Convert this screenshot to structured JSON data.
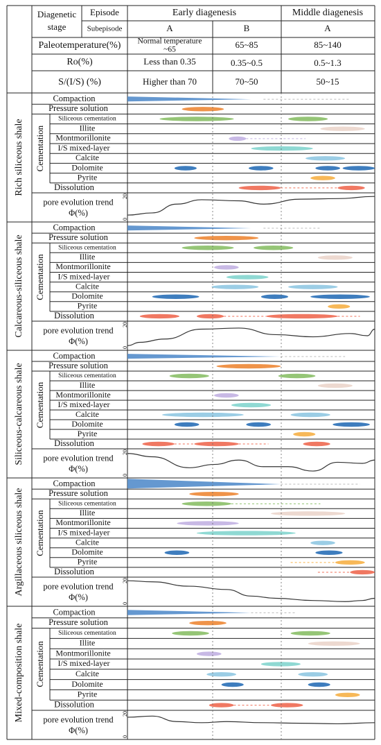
{
  "header": {
    "diagenetic_stage": [
      "Diagenetic",
      "stage"
    ],
    "episode": "Episode",
    "subepisode": "Subepisode",
    "early_diagenesis": "Early diagenesis",
    "middle_diagenesis": "Middle diagenesis",
    "sub_a": "A",
    "sub_b": "B",
    "sub_c": "A",
    "paleotemperature_label": "Paleotemperature(%)",
    "paleo_a": [
      "Normal temperature",
      "~65"
    ],
    "paleo_b": "65~85",
    "paleo_c": "85~140",
    "ro_label": "Ro(%)",
    "ro_a": "Less than 0.35",
    "ro_b": "0.35~0.5",
    "ro_c": "0.5~1.3",
    "sis_label": "S/(I/S) (%)",
    "sis_a": "Higher than 70",
    "sis_b": "70~50",
    "sis_c": "50~15"
  },
  "labels": {
    "compaction": "Compaction",
    "pressure_solution": "Pressure solution",
    "cementation": "Cementation",
    "siliceous_cementation": "Siliceous cementation",
    "illite": "Illite",
    "montmorillonite": "Montmorillonite",
    "is_mixed_layer": "I/S mixed-layer",
    "calcite": "Calcite",
    "dolomite": "Dolomite",
    "pyrite": "Pyrite",
    "dissolution": "Dissolution",
    "pore_trend_1": "pore evolution trend",
    "pore_trend_2": "Φ(%)",
    "axis_top": "20",
    "axis_bottom": "0"
  },
  "colors": {
    "compaction": "#4a86c8",
    "pressure": "#ee8a3a",
    "siliceous": "#8cc06a",
    "illite": "#ecd6cc",
    "montmorillonite": "#c3b3e3",
    "ismixed": "#86d6cf",
    "calcite": "#93c9e3",
    "dolomite": "#2e72b8",
    "pyrite": "#f6b24a",
    "dissolution": "#ef6d55"
  },
  "sections": [
    {
      "name": "Rich siliceous shale",
      "compaction_end": 0.5,
      "bars": {
        "pressure": [
          [
            0.22,
            0.39
          ]
        ],
        "siliceous": [
          [
            0.13,
            0.43
          ],
          [
            0.65,
            0.81
          ]
        ],
        "illite": [
          [
            0.78,
            0.96
          ]
        ],
        "montmorillonite": [
          [
            0.41,
            0.48
          ]
        ],
        "ismixed": [
          [
            0.5,
            0.75
          ]
        ],
        "calcite": [
          [
            0.72,
            0.88
          ]
        ],
        "dolomite": [
          [
            0.19,
            0.28
          ],
          [
            0.49,
            0.59
          ],
          [
            0.76,
            0.86
          ],
          [
            0.87,
            1.0
          ]
        ],
        "pyrite": [
          [
            0.74,
            0.84
          ]
        ],
        "dissolution": [
          [
            0.45,
            0.62
          ],
          [
            0.85,
            0.96
          ]
        ]
      },
      "dashes": {
        "compaction": [
          [
            0.55,
            0.9
          ]
        ],
        "montmorillonite": [
          [
            0.48,
            0.72
          ]
        ],
        "dissolution": [
          [
            0.62,
            0.85
          ]
        ]
      },
      "curve": [
        [
          0,
          1.9
        ],
        [
          0.1,
          1.7
        ],
        [
          0.2,
          0.9
        ],
        [
          0.3,
          0.5
        ],
        [
          0.45,
          0.6
        ],
        [
          0.55,
          0.9
        ],
        [
          0.7,
          0.45
        ],
        [
          0.85,
          0.4
        ],
        [
          1,
          0.2
        ]
      ]
    },
    {
      "name": "Calcareous-siliceous shale",
      "compaction_end": 0.5,
      "bars": {
        "pressure": [
          [
            0.27,
            0.53
          ]
        ],
        "siliceous": [
          [
            0.22,
            0.43
          ],
          [
            0.51,
            0.67
          ]
        ],
        "illite": [
          [
            0.77,
            0.91
          ]
        ],
        "montmorillonite": [
          [
            0.35,
            0.45
          ]
        ],
        "ismixed": [
          [
            0.4,
            0.57
          ]
        ],
        "calcite": [
          [
            0.34,
            0.53
          ],
          [
            0.65,
            0.85
          ]
        ],
        "dolomite": [
          [
            0.1,
            0.29
          ],
          [
            0.54,
            0.65
          ],
          [
            0.74,
            0.98
          ]
        ],
        "pyrite": [
          [
            0.81,
            0.9
          ]
        ],
        "dissolution": [
          [
            0.05,
            0.21
          ],
          [
            0.28,
            0.39
          ],
          [
            0.56,
            0.85
          ]
        ]
      },
      "dashes": {
        "compaction": [
          [
            0.55,
            0.78
          ]
        ],
        "dissolution": [
          [
            0.39,
            0.56
          ],
          [
            0.85,
            0.94
          ]
        ]
      },
      "curve": [
        [
          0,
          2.1
        ],
        [
          0.05,
          1.8
        ],
        [
          0.15,
          1.5
        ],
        [
          0.3,
          0.6
        ],
        [
          0.45,
          0.5
        ],
        [
          0.6,
          1.1
        ],
        [
          0.75,
          1.3
        ],
        [
          0.9,
          1.0
        ],
        [
          0.97,
          1.2
        ],
        [
          1,
          0.6
        ]
      ]
    },
    {
      "name": "Siliceous-calcareous shale",
      "compaction_end": 0.62,
      "bars": {
        "pressure": [
          [
            0.36,
            0.62
          ]
        ],
        "siliceous": [
          [
            0.17,
            0.33
          ],
          [
            0.61,
            0.76
          ]
        ],
        "illite": [
          [
            0.77,
            0.91
          ]
        ],
        "montmorillonite": [
          [
            0.35,
            0.45
          ]
        ],
        "ismixed": [
          [
            0.42,
            0.58
          ]
        ],
        "calcite": [
          [
            0.14,
            0.47
          ],
          [
            0.66,
            0.82
          ]
        ],
        "dolomite": [
          [
            0.19,
            0.29
          ],
          [
            0.48,
            0.58
          ],
          [
            0.83,
            0.98
          ]
        ],
        "pyrite": [
          [
            0.67,
            0.76
          ]
        ],
        "dissolution": [
          [
            0.06,
            0.19
          ],
          [
            0.27,
            0.45
          ],
          [
            0.71,
            0.82
          ]
        ]
      },
      "dashes": {
        "compaction": [
          [
            0.62,
            0.88
          ]
        ],
        "dissolution": [
          [
            0.19,
            0.27
          ],
          [
            0.45,
            0.57
          ]
        ]
      },
      "curve": [
        [
          0,
          0.3
        ],
        [
          0.1,
          0.6
        ],
        [
          0.25,
          1.6
        ],
        [
          0.35,
          1.3
        ],
        [
          0.45,
          0.9
        ],
        [
          0.55,
          1.5
        ],
        [
          0.65,
          1.5
        ],
        [
          0.75,
          1.9
        ],
        [
          0.85,
          1.1
        ],
        [
          0.95,
          1.2
        ],
        [
          1,
          0.9
        ]
      ]
    },
    {
      "name": "Argillaceous siliceous shale",
      "compaction_end": 0.62,
      "bars": {
        "pressure": [
          [
            0.25,
            0.45
          ]
        ],
        "siliceous": [
          [
            0.22,
            0.42
          ]
        ],
        "illite": [
          [
            0.58,
            0.88
          ]
        ],
        "montmorillonite": [
          [
            0.2,
            0.45
          ]
        ],
        "ismixed": [
          [
            0.28,
            0.68
          ]
        ],
        "calcite": [
          [
            0.74,
            0.84
          ]
        ],
        "dolomite": [
          [
            0.15,
            0.25
          ],
          [
            0.76,
            0.87
          ]
        ],
        "pyrite": [
          [
            0.84,
            0.96
          ]
        ],
        "dissolution": [
          [
            0.9,
            1.0
          ]
        ]
      },
      "dashes": {
        "compaction": [
          [
            0.62,
            0.94
          ]
        ],
        "siliceous": [
          [
            0.42,
            0.78
          ]
        ],
        "pyrite": [
          [
            0.66,
            0.84
          ]
        ],
        "dissolution": [
          [
            0.77,
            0.9
          ]
        ]
      },
      "curve": [
        [
          0,
          0.2
        ],
        [
          0.1,
          0.3
        ],
        [
          0.25,
          0.7
        ],
        [
          0.4,
          1.0
        ],
        [
          0.5,
          1.6
        ],
        [
          0.6,
          1.8
        ],
        [
          0.75,
          2.0
        ],
        [
          0.88,
          2.1
        ],
        [
          0.95,
          2.0
        ],
        [
          1,
          1.8
        ]
      ]
    },
    {
      "name": "Mixed-composition shale",
      "compaction_end": 0.5,
      "bars": {
        "pressure": [
          [
            0.25,
            0.4
          ]
        ],
        "siliceous": [
          [
            0.18,
            0.33
          ],
          [
            0.66,
            0.82
          ]
        ],
        "illite": [
          [
            0.73,
            0.94
          ]
        ],
        "montmorillonite": [
          [
            0.28,
            0.38
          ]
        ],
        "ismixed": [
          [
            0.54,
            0.7
          ]
        ],
        "calcite": [
          [
            0.32,
            0.44
          ],
          [
            0.69,
            0.81
          ]
        ],
        "dolomite": [
          [
            0.38,
            0.47
          ],
          [
            0.73,
            0.82
          ]
        ],
        "pyrite": [
          [
            0.84,
            0.94
          ]
        ],
        "dissolution": [
          [
            0.33,
            0.43
          ],
          [
            0.58,
            0.71
          ]
        ]
      },
      "dashes": {
        "compaction": [
          [
            0.5,
            0.68
          ]
        ],
        "dissolution": [
          [
            0.43,
            0.58
          ]
        ]
      },
      "curve": [
        [
          0,
          0.5
        ],
        [
          0.1,
          0.4
        ],
        [
          0.2,
          0.9
        ],
        [
          0.3,
          1.0
        ],
        [
          0.4,
          0.9
        ],
        [
          0.55,
          1.0
        ],
        [
          0.7,
          1.05
        ],
        [
          0.85,
          1.1
        ],
        [
          1,
          1.0
        ]
      ]
    }
  ]
}
